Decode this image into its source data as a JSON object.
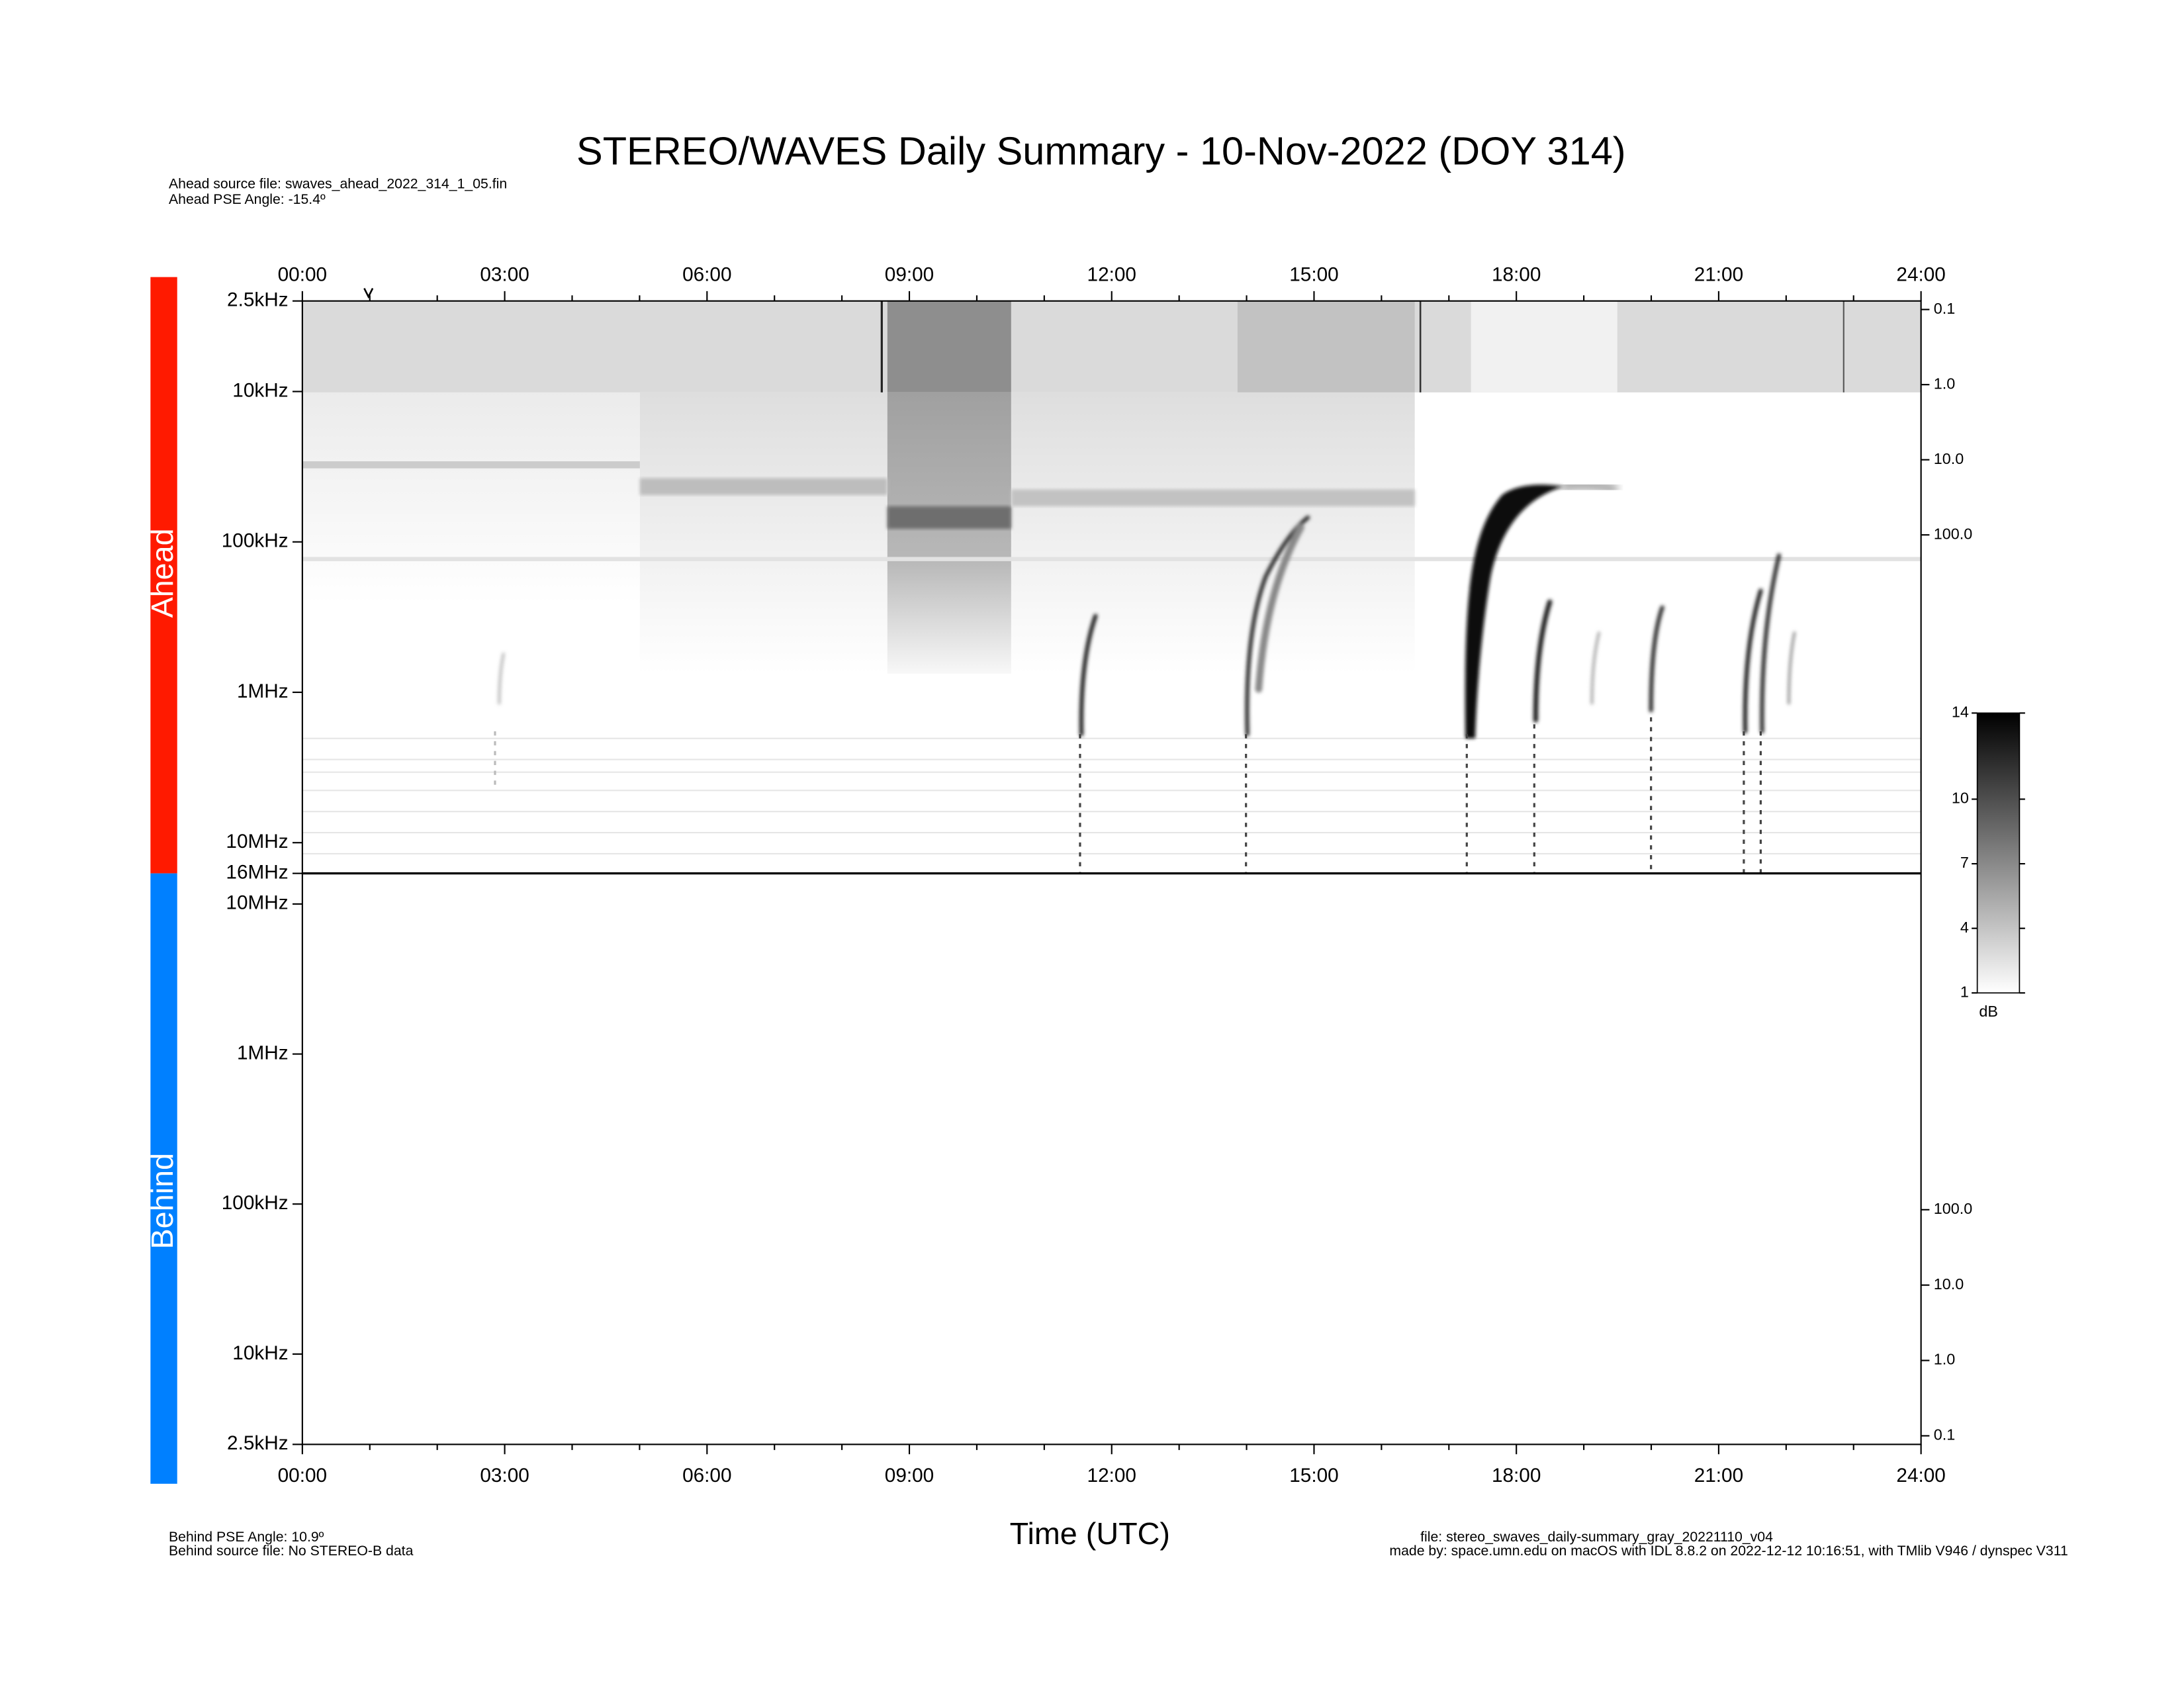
{
  "chart_data": {
    "type": "spectrogram",
    "title": "STEREO/WAVES Daily Summary - 10-Nov-2022 (DOY 314)",
    "header_notes": [
      "Ahead source file: swaves_ahead_2022_314_1_05.fin",
      "Ahead PSE Angle:  -15.4º"
    ],
    "footer_notes_left": [
      "Behind PSE Angle:   10.9º",
      "Behind source file: No STEREO-B data"
    ],
    "footer_notes_right": [
      "file: stereo_swaves_daily-summary_gray_20221110_v04",
      "made by: space.umn.edu on macOS with IDL 8.8.2 on 2022-12-12 10:16:51, with TMlib V946 / dynspec V311"
    ],
    "xlabel": "Time (UTC)",
    "xlim": [
      0,
      24
    ],
    "xticks": [
      {
        "value": 0,
        "label": "00:00"
      },
      {
        "value": 3,
        "label": "03:00"
      },
      {
        "value": 6,
        "label": "06:00"
      },
      {
        "value": 9,
        "label": "09:00"
      },
      {
        "value": 12,
        "label": "12:00"
      },
      {
        "value": 15,
        "label": "15:00"
      },
      {
        "value": 18,
        "label": "18:00"
      },
      {
        "value": 21,
        "label": "21:00"
      },
      {
        "value": 24,
        "label": "24:00"
      }
    ],
    "panels": [
      {
        "name": "Ahead",
        "color": "#ff1a00",
        "ylog": true,
        "ylim": [
          16000000,
          2500
        ],
        "yticks": [
          {
            "value": 2500,
            "label": "2.5kHz"
          },
          {
            "value": 10000,
            "label": "10kHz"
          },
          {
            "value": 100000,
            "label": "100kHz"
          },
          {
            "value": 1000000,
            "label": "1MHz"
          },
          {
            "value": 10000000,
            "label": "10MHz"
          },
          {
            "value": 16000000,
            "label": "16MHz"
          }
        ],
        "y2lim": [
          3200000,
          0.077
        ],
        "y2ticks": [
          0.1,
          {
            "value": 1,
            "label": "1.0"
          },
          {
            "value": 10,
            "label": "10.0"
          },
          {
            "value": 100,
            "label": "100.0"
          }
        ]
      },
      {
        "name": "Behind",
        "color": "#0080ff",
        "ylog": true,
        "ylim": [
          2500,
          16000000
        ],
        "yticks": [
          {
            "value": 10000000,
            "label": "10MHz"
          },
          {
            "value": 1000000,
            "label": "1MHz"
          },
          {
            "value": 100000,
            "label": "100kHz"
          },
          {
            "value": 10000,
            "label": "10kHz"
          },
          {
            "value": 2500,
            "label": "2.5kHz"
          }
        ],
        "y2lim": [
          0.077,
          2900000
        ],
        "y2ticks": [
          {
            "value": 100,
            "label": "100.0"
          },
          {
            "value": 10,
            "label": "10.0"
          },
          {
            "value": 1,
            "label": "1.0"
          },
          0.1
        ]
      }
    ],
    "colorbar": {
      "label": "dB",
      "lim": [
        1,
        14
      ],
      "ticks": [
        14,
        10,
        7,
        4,
        1
      ]
    }
  }
}
